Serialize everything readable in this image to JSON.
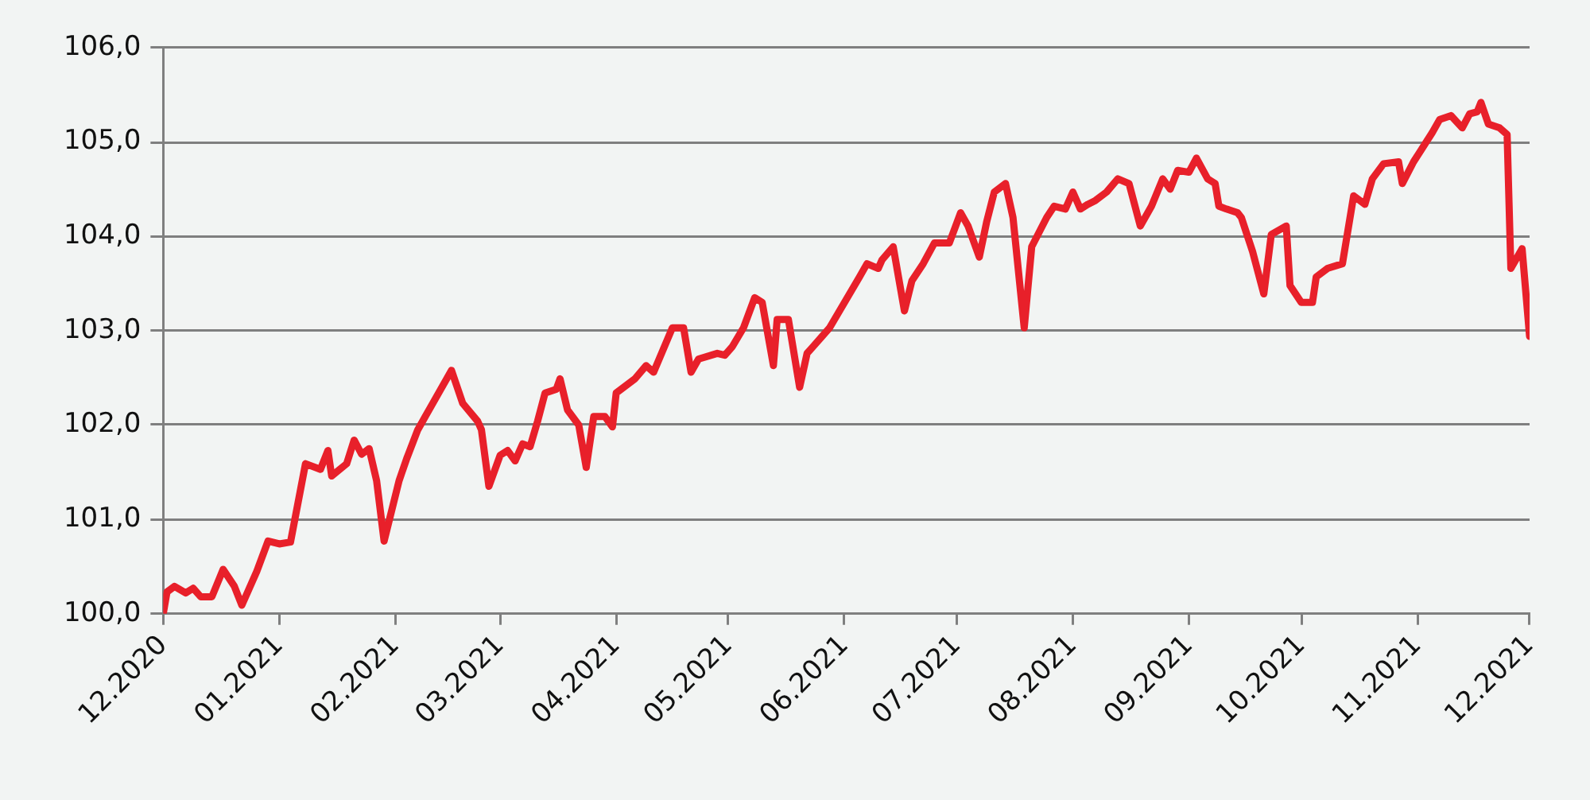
{
  "chart_data": {
    "type": "line",
    "grid": "y",
    "legend": false,
    "marker": "none",
    "line_style": "solid",
    "x": [
      "2020-12-01",
      "2020-12-02",
      "2020-12-04",
      "2020-12-07",
      "2020-12-09",
      "2020-12-11",
      "2020-12-14",
      "2020-12-17",
      "2020-12-20",
      "2020-12-22",
      "2020-12-26",
      "2020-12-29",
      "2021-01-01",
      "2021-01-04",
      "2021-01-08",
      "2021-01-12",
      "2021-01-14",
      "2021-01-15",
      "2021-01-19",
      "2021-01-21",
      "2021-01-23",
      "2021-01-25",
      "2021-01-27",
      "2021-01-29",
      "2021-02-02",
      "2021-02-04",
      "2021-02-07",
      "2021-02-09",
      "2021-02-16",
      "2021-02-19",
      "2021-02-23",
      "2021-02-24",
      "2021-02-26",
      "2021-03-01",
      "2021-03-03",
      "2021-03-05",
      "2021-03-07",
      "2021-03-09",
      "2021-03-11",
      "2021-03-13",
      "2021-03-16",
      "2021-03-17",
      "2021-03-19",
      "2021-03-22",
      "2021-03-24",
      "2021-03-26",
      "2021-03-29",
      "2021-03-31",
      "2021-04-01",
      "2021-04-06",
      "2021-04-09",
      "2021-04-11",
      "2021-04-16",
      "2021-04-19",
      "2021-04-21",
      "2021-04-23",
      "2021-04-28",
      "2021-04-30",
      "2021-05-02",
      "2021-05-05",
      "2021-05-08",
      "2021-05-10",
      "2021-05-13",
      "2021-05-14",
      "2021-05-17",
      "2021-05-20",
      "2021-05-22",
      "2021-05-26",
      "2021-05-28",
      "2021-06-01",
      "2021-06-05",
      "2021-06-07",
      "2021-06-10",
      "2021-06-11",
      "2021-06-14",
      "2021-06-17",
      "2021-06-19",
      "2021-06-22",
      "2021-06-25",
      "2021-06-29",
      "2021-07-02",
      "2021-07-04",
      "2021-07-07",
      "2021-07-09",
      "2021-07-11",
      "2021-07-14",
      "2021-07-16",
      "2021-07-19",
      "2021-07-21",
      "2021-07-25",
      "2021-07-27",
      "2021-07-30",
      "2021-08-01",
      "2021-08-03",
      "2021-08-05",
      "2021-08-07",
      "2021-08-10",
      "2021-08-13",
      "2021-08-16",
      "2021-08-19",
      "2021-08-22",
      "2021-08-25",
      "2021-08-27",
      "2021-08-29",
      "2021-09-01",
      "2021-09-03",
      "2021-09-06",
      "2021-09-08",
      "2021-09-09",
      "2021-09-11",
      "2021-09-14",
      "2021-09-15",
      "2021-09-18",
      "2021-09-21",
      "2021-09-23",
      "2021-09-27",
      "2021-09-28",
      "2021-10-01",
      "2021-10-04",
      "2021-10-05",
      "2021-10-08",
      "2021-10-12",
      "2021-10-15",
      "2021-10-18",
      "2021-10-20",
      "2021-10-23",
      "2021-10-27",
      "2021-10-28",
      "2021-10-31",
      "2021-11-05",
      "2021-11-07",
      "2021-11-10",
      "2021-11-13",
      "2021-11-15",
      "2021-11-17",
      "2021-11-18",
      "2021-11-20",
      "2021-11-23",
      "2021-11-25",
      "2021-11-26",
      "2021-11-29",
      "2021-12-01"
    ],
    "series": [
      {
        "color": "#e8202a",
        "values": [
          100.0,
          100.23,
          100.29,
          100.22,
          100.27,
          100.18,
          100.18,
          100.47,
          100.29,
          100.09,
          100.45,
          100.77,
          100.74,
          100.76,
          101.59,
          101.53,
          101.73,
          101.46,
          101.59,
          101.84,
          101.69,
          101.75,
          101.41,
          100.77,
          101.41,
          101.64,
          101.95,
          102.09,
          102.58,
          102.23,
          102.04,
          101.95,
          101.35,
          101.68,
          101.73,
          101.62,
          101.8,
          101.77,
          102.04,
          102.34,
          102.38,
          102.49,
          102.16,
          102.0,
          101.55,
          102.09,
          102.09,
          101.98,
          102.34,
          102.49,
          102.63,
          102.56,
          103.03,
          103.03,
          102.56,
          102.7,
          102.76,
          102.74,
          102.83,
          103.03,
          103.35,
          103.3,
          102.63,
          103.12,
          103.12,
          102.4,
          102.76,
          102.94,
          103.03,
          103.3,
          103.57,
          103.71,
          103.66,
          103.75,
          103.89,
          103.21,
          103.53,
          103.71,
          103.93,
          103.93,
          104.25,
          104.11,
          103.78,
          104.16,
          104.47,
          104.56,
          104.2,
          103.03,
          103.89,
          104.2,
          104.32,
          104.29,
          104.47,
          104.29,
          104.34,
          104.38,
          104.47,
          104.61,
          104.56,
          104.11,
          104.32,
          104.61,
          104.5,
          104.7,
          104.68,
          104.83,
          104.61,
          104.56,
          104.32,
          104.29,
          104.25,
          104.2,
          103.84,
          103.39,
          104.02,
          104.11,
          103.48,
          103.3,
          103.3,
          103.57,
          103.66,
          103.71,
          104.43,
          104.34,
          104.61,
          104.77,
          104.79,
          104.56,
          104.79,
          105.1,
          105.24,
          105.28,
          105.15,
          105.3,
          105.32,
          105.42,
          105.19,
          105.15,
          105.08,
          103.66,
          103.87,
          102.94
        ]
      }
    ],
    "xlim": [
      "2020-12-01",
      "2021-12-01"
    ],
    "xticks": [
      {
        "value": "2020-12-01",
        "label": "12.2020"
      },
      {
        "value": "2021-01-01",
        "label": "01.2021"
      },
      {
        "value": "2021-02-01",
        "label": "02.2021"
      },
      {
        "value": "2021-03-01",
        "label": "03.2021"
      },
      {
        "value": "2021-04-01",
        "label": "04.2021"
      },
      {
        "value": "2021-05-01",
        "label": "05.2021"
      },
      {
        "value": "2021-06-01",
        "label": "06.2021"
      },
      {
        "value": "2021-07-01",
        "label": "07.2021"
      },
      {
        "value": "2021-08-01",
        "label": "08.2021"
      },
      {
        "value": "2021-09-01",
        "label": "09.2021"
      },
      {
        "value": "2021-10-01",
        "label": "10.2021"
      },
      {
        "value": "2021-11-01",
        "label": "11.2021"
      },
      {
        "value": "2021-12-01",
        "label": "12.2021"
      }
    ],
    "ylim": [
      100,
      106
    ],
    "yticks": [
      {
        "value": 100,
        "label": "100,0"
      },
      {
        "value": 101,
        "label": "101,0"
      },
      {
        "value": 102,
        "label": "102,0"
      },
      {
        "value": 103,
        "label": "103,0"
      },
      {
        "value": 104,
        "label": "104,0"
      },
      {
        "value": 105,
        "label": "105,0"
      },
      {
        "value": 106,
        "label": "106,0"
      }
    ]
  }
}
